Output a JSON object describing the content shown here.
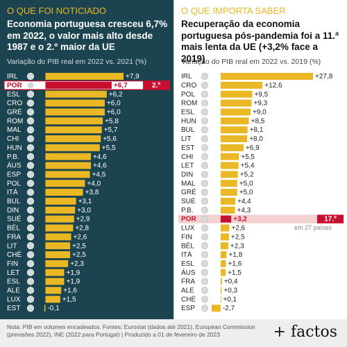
{
  "chart_data": [
    {
      "type": "bar",
      "panel_label": "O QUE FOI NOTICIADO",
      "title": "Economia portuguesa cresceu 6,7% em 2022, o valor mais alto desde 1987 e o 2.º maior da UE",
      "subtitle": "Variação do PIB real em 2022 vs. 2021 (%)",
      "categories": [
        "IRL",
        "POR",
        "ESL",
        "CRO",
        "GRÉ",
        "ROM",
        "MAL",
        "CHI",
        "HUN",
        "P.B.",
        "ÁUS",
        "ESP",
        "POL",
        "ITÁ",
        "BUL",
        "DIN",
        "SUÉ",
        "BÉL",
        "FRA",
        "LIT",
        "CHÉ",
        "FIN",
        "LET",
        "ESL",
        "ALE",
        "LUX",
        "EST"
      ],
      "values": [
        7.9,
        6.7,
        6.2,
        6.0,
        6.0,
        5.8,
        5.7,
        5.6,
        5.5,
        4.6,
        4.6,
        4.5,
        4.0,
        3.8,
        3.1,
        3.0,
        2.9,
        2.8,
        2.6,
        2.5,
        2.5,
        2.3,
        1.9,
        1.9,
        1.6,
        1.5,
        -0.1
      ],
      "value_labels": [
        "+7,9",
        "+6,7",
        "+6,2",
        "+6,0",
        "+6,0",
        "+5,8",
        "+5,7",
        "+5,6",
        "+5,5",
        "+4,6",
        "+4,6",
        "+4,5",
        "+4,0",
        "+3,8",
        "+3,1",
        "+3,0",
        "+2,9",
        "+2,8",
        "+2,6",
        "+2,5",
        "+2,5",
        "+2,3",
        "+1,9",
        "+1,9",
        "+1,6",
        "+1,5",
        "-0,1"
      ],
      "color": "#e9b824",
      "highlight": {
        "category_index": 1,
        "color": "#c8102e",
        "label": "2.º"
      }
    },
    {
      "type": "bar",
      "panel_label": "O QUE IMPORTA SABER",
      "title": "Recuperação da economia portuguesa pós-pandemia foi a 11.ª mais lenta da UE (+3,2% face a 2019)",
      "subtitle": "Variação do PIB real em 2022 vs. 2019 (%)",
      "categories": [
        "IRL",
        "CRO",
        "POL",
        "ROM",
        "ESL",
        "HUN",
        "BUL",
        "LIT",
        "EST",
        "CHI",
        "LET",
        "DIN",
        "MAL",
        "GRÉ",
        "SUÉ",
        "P.B.",
        "POR",
        "LUX",
        "FIN",
        "BÉL",
        "ITÁ",
        "ESL",
        "ÁUS",
        "FRA",
        "ALE",
        "CHÉ",
        "ESP"
      ],
      "values": [
        27.8,
        12.6,
        9.5,
        9.3,
        9.0,
        8.5,
        8.1,
        8.0,
        6.9,
        5.5,
        5.4,
        5.2,
        5.0,
        5.0,
        4.4,
        4.3,
        3.2,
        2.6,
        2.5,
        2.3,
        1.8,
        1.6,
        1.5,
        0.4,
        0.3,
        0.1,
        -2.7
      ],
      "value_labels": [
        "+27,8",
        "+12,6",
        "+9,5",
        "+9,3",
        "+9,0",
        "+8,5",
        "+8,1",
        "+8,0",
        "+6,9",
        "+5,5",
        "+5,4",
        "+5,2",
        "+5,0",
        "+5,0",
        "+4,4",
        "+4,3",
        "+3,2",
        "+2,6",
        "+2,5",
        "+2,3",
        "+1,8",
        "+1,6",
        "+1,5",
        "+0,4",
        "+0,3",
        "+0,1",
        "-2,7"
      ],
      "color": "#e9b824",
      "highlight": {
        "category_index": 16,
        "color": "#c8102e",
        "label": "17.º",
        "note": "em 27 países"
      }
    }
  ],
  "footer": {
    "note": "Nota: PIB em volumes encadeados. Fontes: Eurostat (dados até 2021), European Commission (previsões 2022), INE (2022 para Portugal) | Produzido a 01 de fevereiro de 2023",
    "brand": "+ factos"
  }
}
